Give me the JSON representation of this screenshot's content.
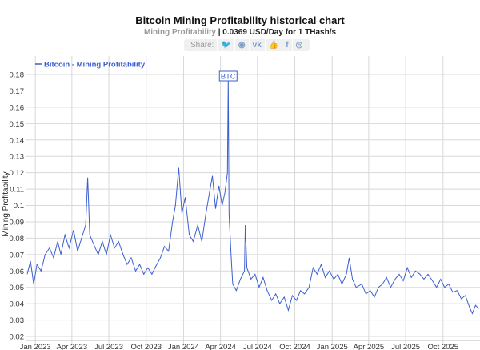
{
  "header": {
    "title": "Bitcoin Mining Profitability historical chart",
    "subtitle_label": "Mining Profitability",
    "subtitle_value": "| 0.0369 USD/Day for 1 THash/s"
  },
  "share": {
    "label": "Share:",
    "icons": [
      "twitter-icon",
      "reddit-icon",
      "vk-icon",
      "like-icon",
      "facebook-icon",
      "weibo-icon"
    ],
    "glyphs": [
      "🐦",
      "◉",
      "vk",
      "👍",
      "f",
      "◎"
    ]
  },
  "chart_data": {
    "type": "line",
    "title": "Bitcoin Mining Profitability historical chart",
    "ylabel": "Mining Profitability",
    "xlabel": "",
    "ylim": [
      0.02,
      0.185
    ],
    "xlim": [
      "2022-12-10",
      "2025-12-31"
    ],
    "grid": true,
    "legend": "top-left",
    "color": "#3c5fcf",
    "yticks": [
      0.02,
      0.03,
      0.04,
      0.05,
      0.06,
      0.07,
      0.08,
      0.09,
      0.1,
      0.11,
      0.12,
      0.13,
      0.14,
      0.15,
      0.16,
      0.17,
      0.18
    ],
    "xticks": [
      {
        "d": "2023-01-01",
        "label": "Jan 2023"
      },
      {
        "d": "2023-04-01",
        "label": "Apr 2023"
      },
      {
        "d": "2023-07-01",
        "label": "Jul 2023"
      },
      {
        "d": "2023-10-01",
        "label": "Oct 2023"
      },
      {
        "d": "2024-01-01",
        "label": "Jan 2024"
      },
      {
        "d": "2024-04-01",
        "label": "Apr 2024"
      },
      {
        "d": "2024-07-01",
        "label": "Jul 2024"
      },
      {
        "d": "2024-10-01",
        "label": "Oct 2024"
      },
      {
        "d": "2025-01-01",
        "label": "Jan 2025"
      },
      {
        "d": "2025-04-01",
        "label": "Apr 2025"
      },
      {
        "d": "2025-07-01",
        "label": "Jul 2025"
      },
      {
        "d": "2025-10-01",
        "label": "Oct 2025"
      }
    ],
    "annotation": {
      "label": "BTC",
      "x": "2024-04-20",
      "y": 0.178
    },
    "series": [
      {
        "name": "Bitcoin - Mining Profitability",
        "points": [
          [
            "2022-12-12",
            0.058
          ],
          [
            "2022-12-20",
            0.066
          ],
          [
            "2022-12-28",
            0.052
          ],
          [
            "2023-01-05",
            0.064
          ],
          [
            "2023-01-15",
            0.06
          ],
          [
            "2023-01-25",
            0.07
          ],
          [
            "2023-02-05",
            0.074
          ],
          [
            "2023-02-15",
            0.068
          ],
          [
            "2023-02-25",
            0.078
          ],
          [
            "2023-03-05",
            0.07
          ],
          [
            "2023-03-15",
            0.082
          ],
          [
            "2023-03-25",
            0.074
          ],
          [
            "2023-04-05",
            0.085
          ],
          [
            "2023-04-15",
            0.072
          ],
          [
            "2023-04-25",
            0.08
          ],
          [
            "2023-05-05",
            0.088
          ],
          [
            "2023-05-10",
            0.117
          ],
          [
            "2023-05-15",
            0.082
          ],
          [
            "2023-05-25",
            0.076
          ],
          [
            "2023-06-05",
            0.07
          ],
          [
            "2023-06-15",
            0.078
          ],
          [
            "2023-06-25",
            0.07
          ],
          [
            "2023-07-05",
            0.082
          ],
          [
            "2023-07-15",
            0.074
          ],
          [
            "2023-07-25",
            0.078
          ],
          [
            "2023-08-05",
            0.07
          ],
          [
            "2023-08-15",
            0.064
          ],
          [
            "2023-08-25",
            0.068
          ],
          [
            "2023-09-05",
            0.06
          ],
          [
            "2023-09-15",
            0.064
          ],
          [
            "2023-09-25",
            0.058
          ],
          [
            "2023-10-05",
            0.062
          ],
          [
            "2023-10-15",
            0.058
          ],
          [
            "2023-10-25",
            0.063
          ],
          [
            "2023-11-05",
            0.068
          ],
          [
            "2023-11-15",
            0.075
          ],
          [
            "2023-11-25",
            0.072
          ],
          [
            "2023-12-05",
            0.09
          ],
          [
            "2023-12-12",
            0.1
          ],
          [
            "2023-12-20",
            0.123
          ],
          [
            "2023-12-28",
            0.095
          ],
          [
            "2024-01-05",
            0.105
          ],
          [
            "2024-01-15",
            0.082
          ],
          [
            "2024-01-25",
            0.078
          ],
          [
            "2024-02-05",
            0.088
          ],
          [
            "2024-02-15",
            0.078
          ],
          [
            "2024-02-25",
            0.095
          ],
          [
            "2024-03-05",
            0.108
          ],
          [
            "2024-03-12",
            0.118
          ],
          [
            "2024-03-20",
            0.098
          ],
          [
            "2024-03-28",
            0.112
          ],
          [
            "2024-04-05",
            0.1
          ],
          [
            "2024-04-12",
            0.108
          ],
          [
            "2024-04-18",
            0.12
          ],
          [
            "2024-04-20",
            0.178
          ],
          [
            "2024-04-22",
            0.095
          ],
          [
            "2024-04-27",
            0.07
          ],
          [
            "2024-05-01",
            0.052
          ],
          [
            "2024-05-10",
            0.048
          ],
          [
            "2024-05-20",
            0.055
          ],
          [
            "2024-05-30",
            0.06
          ],
          [
            "2024-06-01",
            0.088
          ],
          [
            "2024-06-05",
            0.062
          ],
          [
            "2024-06-15",
            0.055
          ],
          [
            "2024-06-25",
            0.058
          ],
          [
            "2024-07-05",
            0.05
          ],
          [
            "2024-07-15",
            0.056
          ],
          [
            "2024-07-25",
            0.048
          ],
          [
            "2024-08-05",
            0.042
          ],
          [
            "2024-08-15",
            0.046
          ],
          [
            "2024-08-25",
            0.04
          ],
          [
            "2024-09-05",
            0.044
          ],
          [
            "2024-09-15",
            0.036
          ],
          [
            "2024-09-25",
            0.045
          ],
          [
            "2024-10-05",
            0.042
          ],
          [
            "2024-10-15",
            0.048
          ],
          [
            "2024-10-25",
            0.046
          ],
          [
            "2024-11-05",
            0.05
          ],
          [
            "2024-11-15",
            0.062
          ],
          [
            "2024-11-25",
            0.058
          ],
          [
            "2024-12-05",
            0.064
          ],
          [
            "2024-12-15",
            0.056
          ],
          [
            "2024-12-25",
            0.06
          ],
          [
            "2025-01-05",
            0.055
          ],
          [
            "2025-01-15",
            0.058
          ],
          [
            "2025-01-25",
            0.052
          ],
          [
            "2025-02-05",
            0.058
          ],
          [
            "2025-02-12",
            0.068
          ],
          [
            "2025-02-20",
            0.055
          ],
          [
            "2025-03-01",
            0.05
          ],
          [
            "2025-03-15",
            0.052
          ],
          [
            "2025-03-25",
            0.046
          ],
          [
            "2025-04-05",
            0.048
          ],
          [
            "2025-04-15",
            0.044
          ],
          [
            "2025-04-25",
            0.05
          ],
          [
            "2025-05-05",
            0.052
          ],
          [
            "2025-05-15",
            0.056
          ],
          [
            "2025-05-25",
            0.05
          ],
          [
            "2025-06-05",
            0.055
          ],
          [
            "2025-06-15",
            0.058
          ],
          [
            "2025-06-25",
            0.054
          ],
          [
            "2025-07-05",
            0.062
          ],
          [
            "2025-07-15",
            0.056
          ],
          [
            "2025-07-25",
            0.06
          ],
          [
            "2025-08-05",
            0.058
          ],
          [
            "2025-08-15",
            0.055
          ],
          [
            "2025-08-25",
            0.058
          ],
          [
            "2025-09-05",
            0.054
          ],
          [
            "2025-09-15",
            0.05
          ],
          [
            "2025-09-25",
            0.055
          ],
          [
            "2025-10-05",
            0.05
          ],
          [
            "2025-10-15",
            0.052
          ],
          [
            "2025-10-25",
            0.047
          ],
          [
            "2025-11-05",
            0.048
          ],
          [
            "2025-11-15",
            0.043
          ],
          [
            "2025-11-25",
            0.045
          ],
          [
            "2025-12-05",
            0.038
          ],
          [
            "2025-12-12",
            0.034
          ],
          [
            "2025-12-20",
            0.039
          ],
          [
            "2025-12-28",
            0.037
          ]
        ]
      }
    ]
  }
}
